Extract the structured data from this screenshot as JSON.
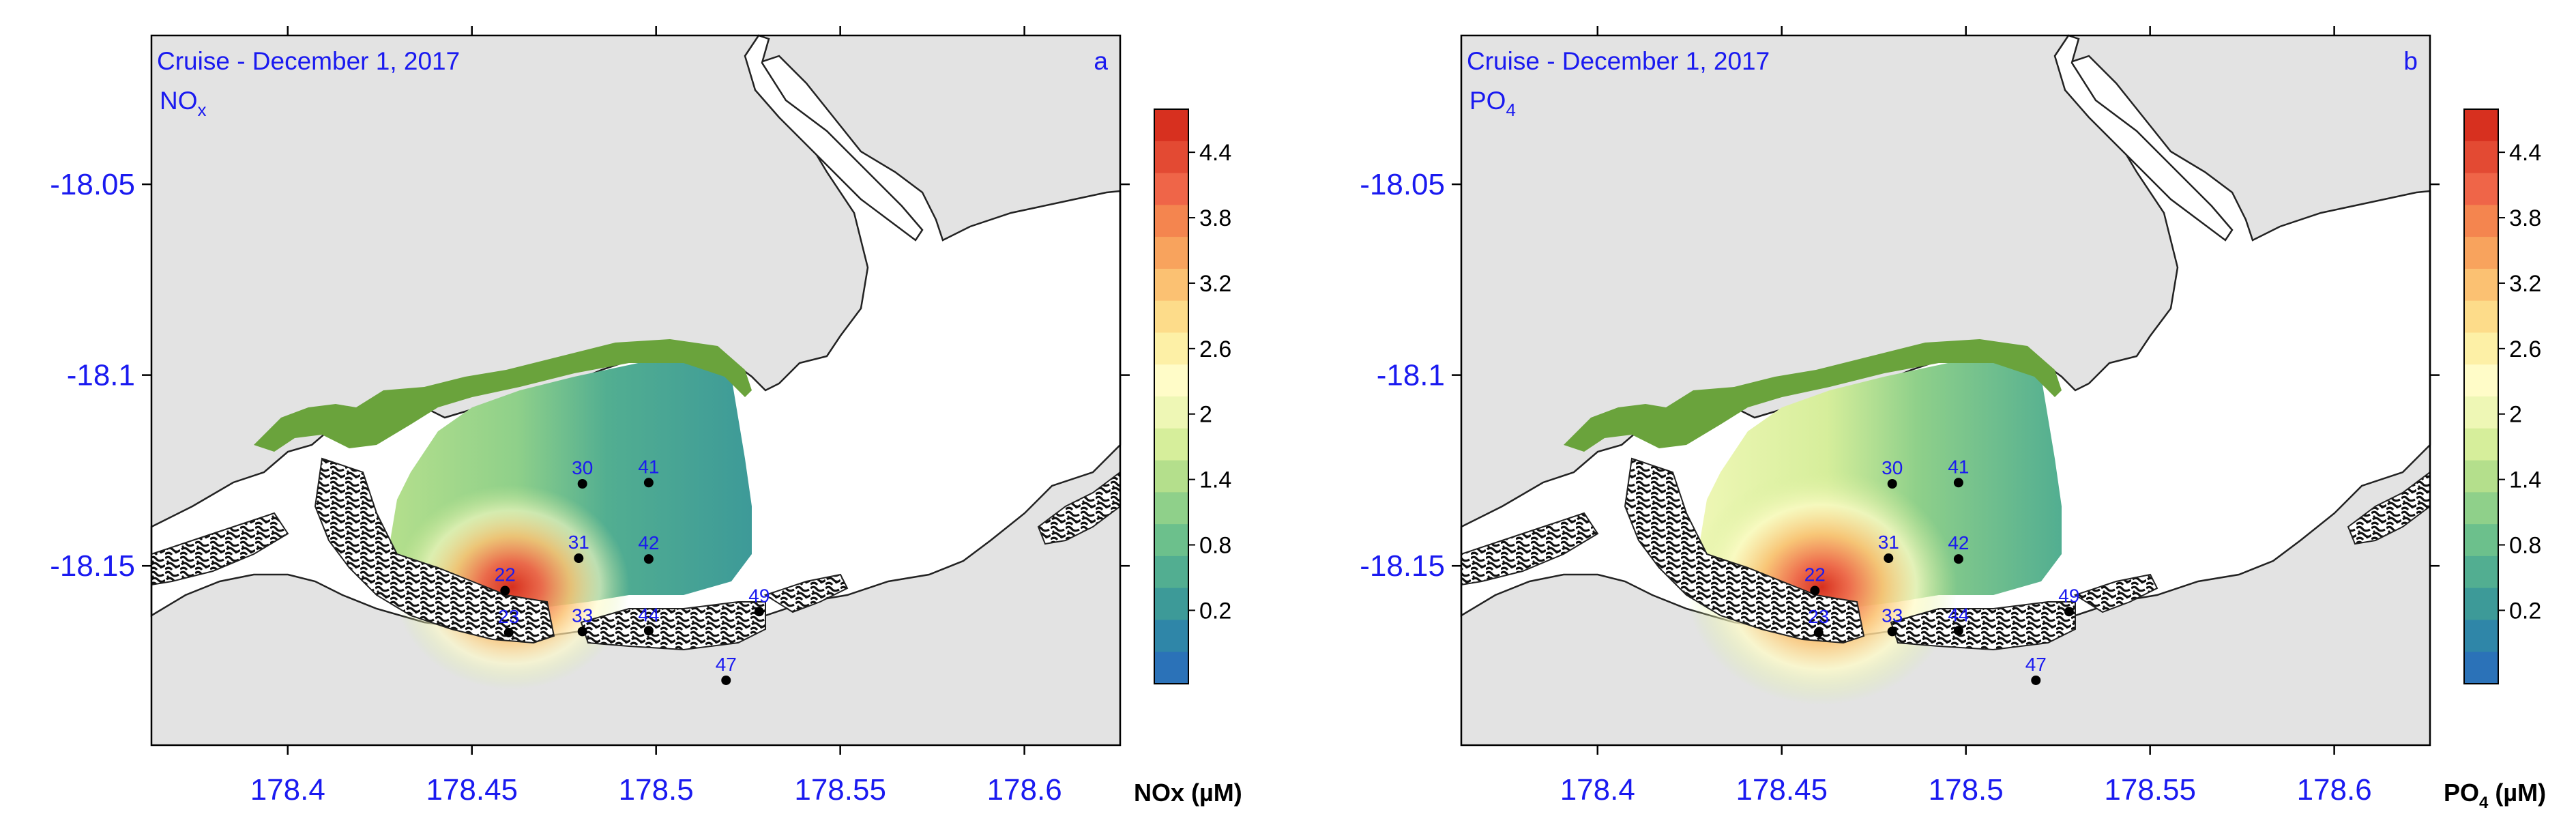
{
  "panels": [
    {
      "id": "a",
      "title": "Cruise - December 1, 2017",
      "variable": "NO",
      "variable_sub": "x",
      "panel_letter": "a",
      "unit_label": "NOx (µM)",
      "hotspot_strength": 1.0
    },
    {
      "id": "b",
      "title": "Cruise - December 1, 2017",
      "variable": "PO",
      "variable_sub": "4",
      "panel_letter": "b",
      "unit_label_main": "PO",
      "unit_label_sub": "4",
      "unit_label_tail": " (µM)",
      "hotspot_strength": 1.15
    }
  ],
  "axes": {
    "x_ticks": [
      "178.4",
      "178.45",
      "178.5",
      "178.55",
      "178.6"
    ],
    "y_ticks": [
      "-18.05",
      "-18.1",
      "-18.15"
    ]
  },
  "colorbar": {
    "labels": [
      "4.4",
      "3.8",
      "3.2",
      "2.6",
      "2",
      "1.4",
      "0.8",
      "0.2"
    ],
    "colors": [
      "#d7301f",
      "#e34a33",
      "#ef6548",
      "#f4854f",
      "#f8a35d",
      "#fbc172",
      "#fddc8a",
      "#fdf0a6",
      "#fffcc8",
      "#eef7b5",
      "#d6ee9b",
      "#b4df8c",
      "#8fd08a",
      "#6cc08c",
      "#52ae91",
      "#3d9a98",
      "#2f86a8",
      "#2b72b8"
    ]
  },
  "stations": [
    {
      "id": "30",
      "lon": 178.48,
      "lat": -18.1285
    },
    {
      "id": "41",
      "lon": 178.498,
      "lat": -18.1282
    },
    {
      "id": "31",
      "lon": 178.479,
      "lat": -18.148
    },
    {
      "id": "42",
      "lon": 178.498,
      "lat": -18.1482
    },
    {
      "id": "22",
      "lon": 178.459,
      "lat": -18.1565
    },
    {
      "id": "23",
      "lon": 178.46,
      "lat": -18.1675
    },
    {
      "id": "33",
      "lon": 178.48,
      "lat": -18.1672
    },
    {
      "id": "44",
      "lon": 178.498,
      "lat": -18.167
    },
    {
      "id": "49",
      "lon": 178.528,
      "lat": -18.162
    },
    {
      "id": "47",
      "lon": 178.519,
      "lat": -18.18
    }
  ]
}
